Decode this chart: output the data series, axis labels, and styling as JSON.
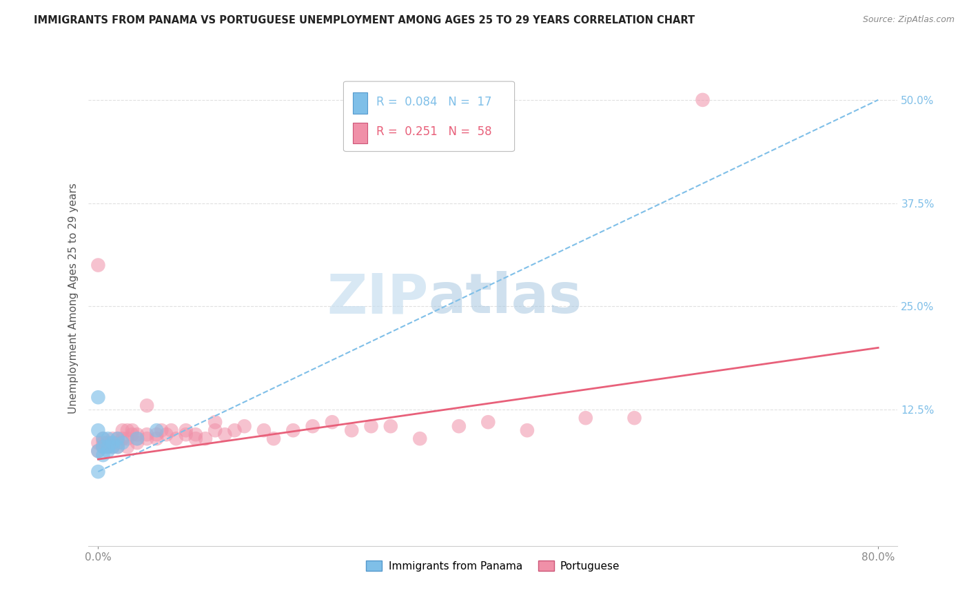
{
  "title": "IMMIGRANTS FROM PANAMA VS PORTUGUESE UNEMPLOYMENT AMONG AGES 25 TO 29 YEARS CORRELATION CHART",
  "source": "Source: ZipAtlas.com",
  "ylabel": "Unemployment Among Ages 25 to 29 years",
  "xlim": [
    -0.01,
    0.82
  ],
  "ylim": [
    -0.04,
    0.56
  ],
  "x_ticks": [
    0.0,
    0.8
  ],
  "x_tick_labels": [
    "0.0%",
    "80.0%"
  ],
  "y_tick_labels": [
    "12.5%",
    "25.0%",
    "37.5%",
    "50.0%"
  ],
  "y_tick_values": [
    0.125,
    0.25,
    0.375,
    0.5
  ],
  "watermark_zip": "ZIP",
  "watermark_atlas": "atlas",
  "legend_label1": "Immigrants from Panama",
  "legend_label2": "Portuguese",
  "R1": "0.084",
  "N1": "17",
  "R2": "0.251",
  "N2": "58",
  "color1": "#7fbfe8",
  "color2": "#f090a8",
  "trendline1_color": "#7fbfe8",
  "trendline2_color": "#e8607a",
  "panama_x": [
    0.0,
    0.0,
    0.0,
    0.0,
    0.005,
    0.005,
    0.005,
    0.01,
    0.01,
    0.01,
    0.015,
    0.015,
    0.02,
    0.02,
    0.025,
    0.04,
    0.06
  ],
  "panama_y": [
    0.14,
    0.1,
    0.075,
    0.05,
    0.09,
    0.08,
    0.07,
    0.09,
    0.08,
    0.075,
    0.085,
    0.08,
    0.09,
    0.08,
    0.085,
    0.09,
    0.1
  ],
  "portuguese_x": [
    0.0,
    0.0,
    0.0,
    0.005,
    0.005,
    0.005,
    0.01,
    0.01,
    0.015,
    0.015,
    0.015,
    0.02,
    0.02,
    0.02,
    0.025,
    0.025,
    0.03,
    0.03,
    0.03,
    0.035,
    0.035,
    0.04,
    0.04,
    0.04,
    0.05,
    0.05,
    0.05,
    0.06,
    0.06,
    0.065,
    0.07,
    0.075,
    0.08,
    0.09,
    0.09,
    0.1,
    0.1,
    0.11,
    0.12,
    0.12,
    0.13,
    0.14,
    0.15,
    0.17,
    0.18,
    0.2,
    0.22,
    0.24,
    0.26,
    0.28,
    0.3,
    0.33,
    0.37,
    0.4,
    0.44,
    0.5,
    0.55,
    0.62
  ],
  "portuguese_y": [
    0.3,
    0.085,
    0.075,
    0.09,
    0.085,
    0.08,
    0.085,
    0.08,
    0.09,
    0.085,
    0.08,
    0.09,
    0.085,
    0.08,
    0.1,
    0.09,
    0.1,
    0.09,
    0.08,
    0.1,
    0.095,
    0.09,
    0.085,
    0.095,
    0.095,
    0.09,
    0.13,
    0.095,
    0.09,
    0.1,
    0.095,
    0.1,
    0.09,
    0.095,
    0.1,
    0.09,
    0.095,
    0.09,
    0.11,
    0.1,
    0.095,
    0.1,
    0.105,
    0.1,
    0.09,
    0.1,
    0.105,
    0.11,
    0.1,
    0.105,
    0.105,
    0.09,
    0.105,
    0.11,
    0.1,
    0.115,
    0.115,
    0.5
  ],
  "trendline1_x": [
    0.0,
    0.8
  ],
  "trendline1_y": [
    0.05,
    0.5
  ],
  "trendline2_x": [
    0.0,
    0.8
  ],
  "trendline2_y": [
    0.065,
    0.2
  ],
  "grid_color": "#e0e0e0",
  "background_color": "#ffffff"
}
